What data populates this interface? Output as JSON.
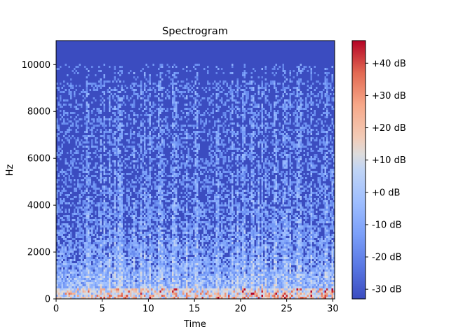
{
  "chart_data": {
    "type": "heatmap",
    "title": "Spectrogram",
    "xlabel": "Time",
    "ylabel": "Hz",
    "xlim": [
      0,
      30.2
    ],
    "ylim": [
      0,
      11025
    ],
    "x_ticks": [
      0,
      5,
      10,
      15,
      20,
      25,
      30
    ],
    "y_ticks": [
      0,
      2000,
      4000,
      6000,
      8000,
      10000
    ],
    "colormap": "coolwarm",
    "colorbar": {
      "range": [
        -33,
        47
      ],
      "ticks": [
        -30,
        -20,
        -10,
        0,
        10,
        20,
        30,
        40
      ],
      "tick_labels": [
        "-30 dB",
        "-20 dB",
        "-10 dB",
        "+0 dB",
        "+10 dB",
        "+20 dB",
        "+30 dB",
        "+40 dB"
      ]
    },
    "colors": {
      "cold": "#3b4cc0",
      "neutral": "#dddddd",
      "hot": "#b40426"
    },
    "grid": false
  }
}
